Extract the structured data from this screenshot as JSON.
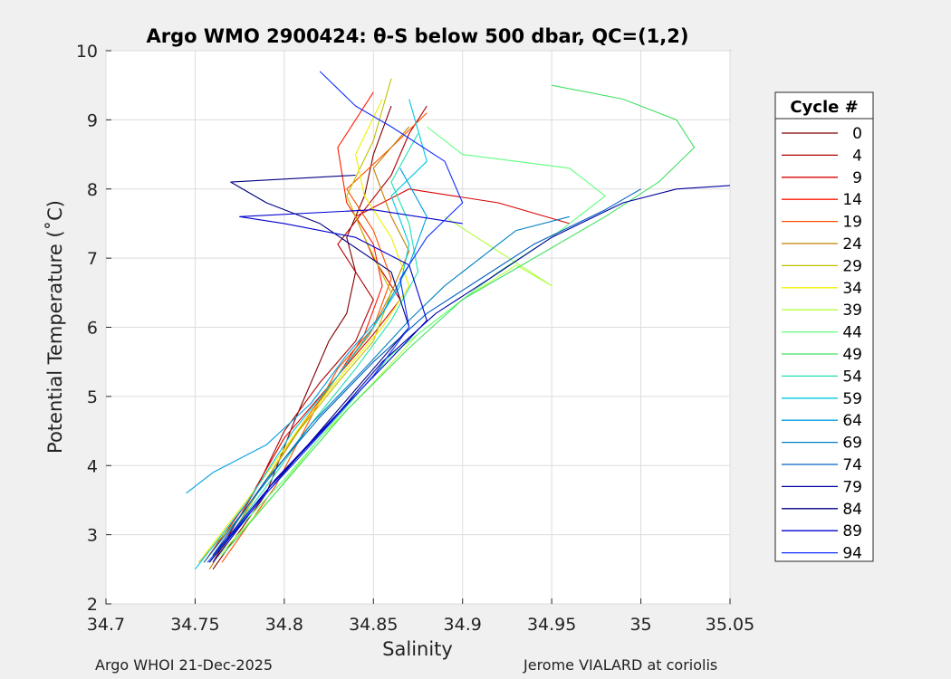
{
  "chart_data": {
    "type": "line",
    "title": "Argo WMO 2900424: θ-S below 500 dbar,  QC=(1,2)",
    "xlabel": "Salinity",
    "ylabel": "Potential Temperature (˚C)",
    "xlim": [
      34.7,
      35.05
    ],
    "ylim": [
      2,
      10
    ],
    "xticks": [
      "34.7",
      "34.75",
      "34.8",
      "34.85",
      "34.9",
      "34.95",
      "35",
      "35.05"
    ],
    "yticks": [
      "2",
      "3",
      "4",
      "5",
      "6",
      "7",
      "8",
      "9",
      "10"
    ],
    "grid": true,
    "legend_title": "Cycle #",
    "legend_position": "right-outside",
    "series": [
      {
        "name": "0",
        "color": "#800000",
        "x": [
          34.76,
          34.79,
          34.805,
          34.815,
          34.825,
          34.835,
          34.84,
          34.835,
          34.845,
          34.85,
          34.86
        ],
        "y": [
          2.5,
          3.6,
          4.6,
          5.2,
          5.8,
          6.2,
          6.8,
          7.3,
          7.9,
          8.5,
          9.2
        ]
      },
      {
        "name": "4",
        "color": "#b00000",
        "x": [
          34.76,
          34.785,
          34.8,
          34.82,
          34.84,
          34.85,
          34.83,
          34.845,
          34.86,
          34.87,
          34.88
        ],
        "y": [
          2.6,
          3.7,
          4.5,
          5.2,
          5.8,
          6.4,
          7.2,
          7.7,
          8.2,
          8.8,
          9.2
        ]
      },
      {
        "name": "9",
        "color": "#d80000",
        "x": [
          34.755,
          34.78,
          34.8,
          34.83,
          34.85,
          34.865,
          34.85,
          34.84,
          34.87,
          34.92,
          34.96
        ],
        "y": [
          2.6,
          3.5,
          4.4,
          5.3,
          5.9,
          6.4,
          7.0,
          7.6,
          8.0,
          7.8,
          7.5
        ]
      },
      {
        "name": "14",
        "color": "#ff1a00",
        "x": [
          34.76,
          34.79,
          34.81,
          34.83,
          34.845,
          34.855,
          34.85,
          34.835,
          34.83,
          34.85
        ],
        "y": [
          2.7,
          3.8,
          4.6,
          5.3,
          5.9,
          6.6,
          7.2,
          7.8,
          8.6,
          9.4
        ]
      },
      {
        "name": "19",
        "color": "#ff5000",
        "x": [
          34.765,
          34.795,
          34.815,
          34.83,
          34.85,
          34.86,
          34.85,
          34.835,
          34.86,
          34.88
        ],
        "y": [
          2.6,
          3.7,
          4.7,
          5.4,
          6.0,
          6.7,
          7.4,
          8.0,
          8.6,
          9.1
        ]
      },
      {
        "name": "24",
        "color": "#c08000",
        "x": [
          34.758,
          34.785,
          34.808,
          34.83,
          34.848,
          34.86,
          34.87,
          34.86,
          34.85,
          34.87
        ],
        "y": [
          2.5,
          3.6,
          4.5,
          5.3,
          5.9,
          6.5,
          7.1,
          7.6,
          8.3,
          8.9
        ]
      },
      {
        "name": "29",
        "color": "#c0c000",
        "x": [
          34.752,
          34.78,
          34.805,
          34.83,
          34.85,
          34.86,
          34.845,
          34.835,
          34.85,
          34.86
        ],
        "y": [
          2.6,
          3.4,
          4.4,
          5.2,
          5.8,
          6.5,
          7.3,
          7.9,
          8.7,
          9.6
        ]
      },
      {
        "name": "34",
        "color": "#f0f000",
        "x": [
          34.755,
          34.785,
          34.81,
          34.835,
          34.855,
          34.87,
          34.86,
          34.845,
          34.84,
          34.855
        ],
        "y": [
          2.7,
          3.7,
          4.6,
          5.4,
          6.0,
          6.6,
          7.3,
          7.9,
          8.5,
          9.3
        ]
      },
      {
        "name": "39",
        "color": "#b0ff40",
        "x": [
          34.76,
          34.795,
          34.82,
          34.85,
          34.875,
          34.9,
          34.93,
          34.95,
          34.92,
          34.89
        ],
        "y": [
          2.6,
          3.6,
          4.4,
          5.2,
          5.9,
          6.4,
          6.9,
          6.6,
          7.1,
          7.6
        ]
      },
      {
        "name": "44",
        "color": "#60ff80",
        "x": [
          34.76,
          34.8,
          34.83,
          34.86,
          34.89,
          34.92,
          34.95,
          34.98,
          34.96,
          34.9,
          34.88
        ],
        "y": [
          2.7,
          3.8,
          4.7,
          5.6,
          6.2,
          6.8,
          7.3,
          7.9,
          8.3,
          8.5,
          8.9
        ]
      },
      {
        "name": "49",
        "color": "#40e060",
        "x": [
          34.765,
          34.805,
          34.835,
          34.87,
          34.9,
          34.94,
          34.98,
          35.01,
          35.03,
          35.02,
          34.99,
          34.95
        ],
        "y": [
          2.7,
          3.9,
          4.8,
          5.7,
          6.4,
          7.0,
          7.6,
          8.1,
          8.6,
          9.0,
          9.3,
          9.5
        ]
      },
      {
        "name": "54",
        "color": "#20e0b0",
        "x": [
          34.758,
          34.79,
          34.815,
          34.84,
          34.86,
          34.875,
          34.87,
          34.86,
          34.875
        ],
        "y": [
          2.6,
          3.7,
          4.6,
          5.4,
          6.1,
          6.8,
          7.5,
          8.1,
          8.8
        ]
      },
      {
        "name": "59",
        "color": "#00c8e0",
        "x": [
          34.75,
          34.78,
          34.805,
          34.83,
          34.85,
          34.865,
          34.87,
          34.86,
          34.88,
          34.87
        ],
        "y": [
          2.5,
          3.5,
          4.5,
          5.3,
          6.0,
          6.6,
          7.2,
          7.9,
          8.4,
          9.3
        ]
      },
      {
        "name": "64",
        "color": "#00a0e0",
        "x": [
          34.745,
          34.76,
          34.79,
          34.815,
          34.835,
          34.855,
          34.87,
          34.88,
          34.865
        ],
        "y": [
          3.6,
          3.9,
          4.3,
          4.9,
          5.6,
          6.2,
          6.9,
          7.6,
          8.3
        ]
      },
      {
        "name": "69",
        "color": "#0080c0",
        "x": [
          34.755,
          34.788,
          34.815,
          34.845,
          34.87,
          34.89,
          34.91,
          34.93,
          34.96
        ],
        "y": [
          2.6,
          3.7,
          4.6,
          5.4,
          6.1,
          6.6,
          7.0,
          7.4,
          7.6
        ]
      },
      {
        "name": "74",
        "color": "#0060c0",
        "x": [
          34.76,
          34.79,
          34.82,
          34.85,
          34.88,
          34.91,
          34.94,
          34.98,
          35.0
        ],
        "y": [
          2.7,
          3.8,
          4.7,
          5.5,
          6.2,
          6.7,
          7.2,
          7.7,
          8.0
        ]
      },
      {
        "name": "79",
        "color": "#0000a0",
        "x": [
          34.76,
          34.792,
          34.825,
          34.855,
          34.885,
          34.915,
          34.95,
          34.99,
          35.02,
          35.05
        ],
        "y": [
          2.7,
          3.7,
          4.6,
          5.5,
          6.2,
          6.7,
          7.3,
          7.8,
          8.0,
          8.05
        ]
      },
      {
        "name": "84",
        "color": "#000080",
        "x": [
          34.758,
          34.79,
          34.82,
          34.85,
          34.87,
          34.86,
          34.82,
          34.79,
          34.77,
          34.84
        ],
        "y": [
          2.6,
          3.6,
          4.5,
          5.4,
          6.0,
          6.8,
          7.5,
          7.8,
          8.1,
          8.2
        ]
      },
      {
        "name": "89",
        "color": "#0000d0",
        "x": [
          34.76,
          34.795,
          34.828,
          34.858,
          34.88,
          34.87,
          34.84,
          34.8,
          34.775,
          34.85,
          34.9
        ],
        "y": [
          2.6,
          3.8,
          4.7,
          5.5,
          6.1,
          6.9,
          7.3,
          7.5,
          7.6,
          7.7,
          7.5
        ]
      },
      {
        "name": "94",
        "color": "#1030ff",
        "x": [
          34.757,
          34.79,
          34.822,
          34.85,
          34.87,
          34.865,
          34.88,
          34.9,
          34.89,
          34.86,
          34.84,
          34.82
        ],
        "y": [
          2.6,
          3.6,
          4.5,
          5.3,
          6.0,
          6.7,
          7.3,
          7.8,
          8.4,
          8.9,
          9.2,
          9.7
        ]
      }
    ],
    "footer_left": "Argo WHOI 21-Dec-2025",
    "footer_right": "Jerome VIALARD at coriolis"
  }
}
